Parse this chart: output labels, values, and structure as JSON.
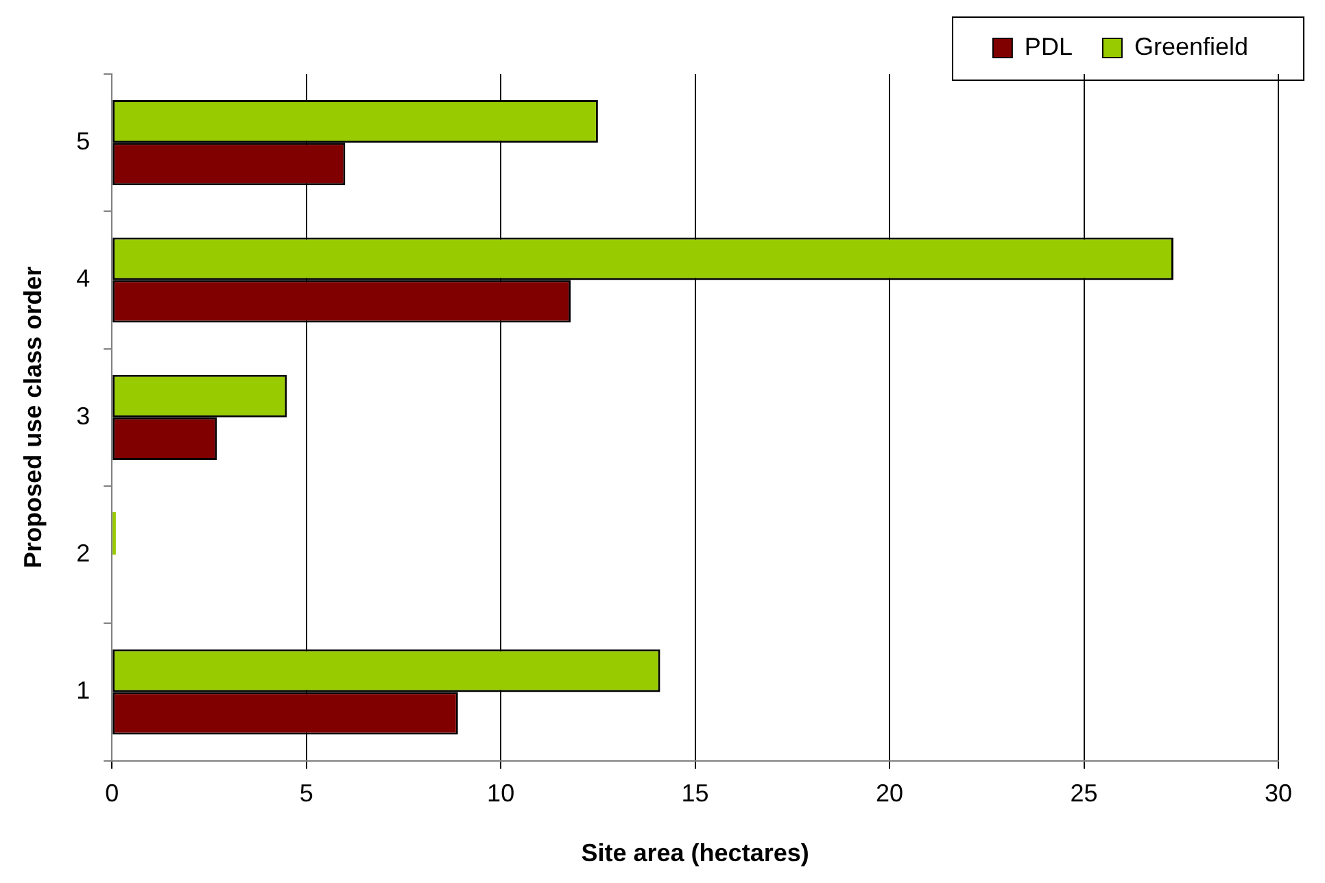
{
  "chart_data": {
    "type": "bar",
    "orientation": "horizontal",
    "xlabel": "Site area (hectares)",
    "ylabel": "Proposed use class order",
    "categories": [
      "5",
      "4",
      "3",
      "2",
      "1"
    ],
    "series": [
      {
        "name": "PDL",
        "color": "#800000",
        "values": [
          6.0,
          11.8,
          2.7,
          0,
          8.9
        ]
      },
      {
        "name": "Greenfield",
        "color": "#99cc00",
        "values": [
          12.5,
          27.3,
          4.5,
          0.1,
          14.1
        ]
      }
    ],
    "xlim": [
      0,
      30
    ],
    "xticks": [
      0,
      5,
      10,
      15,
      20,
      25,
      30
    ],
    "grid": "x",
    "legend": "top right"
  }
}
